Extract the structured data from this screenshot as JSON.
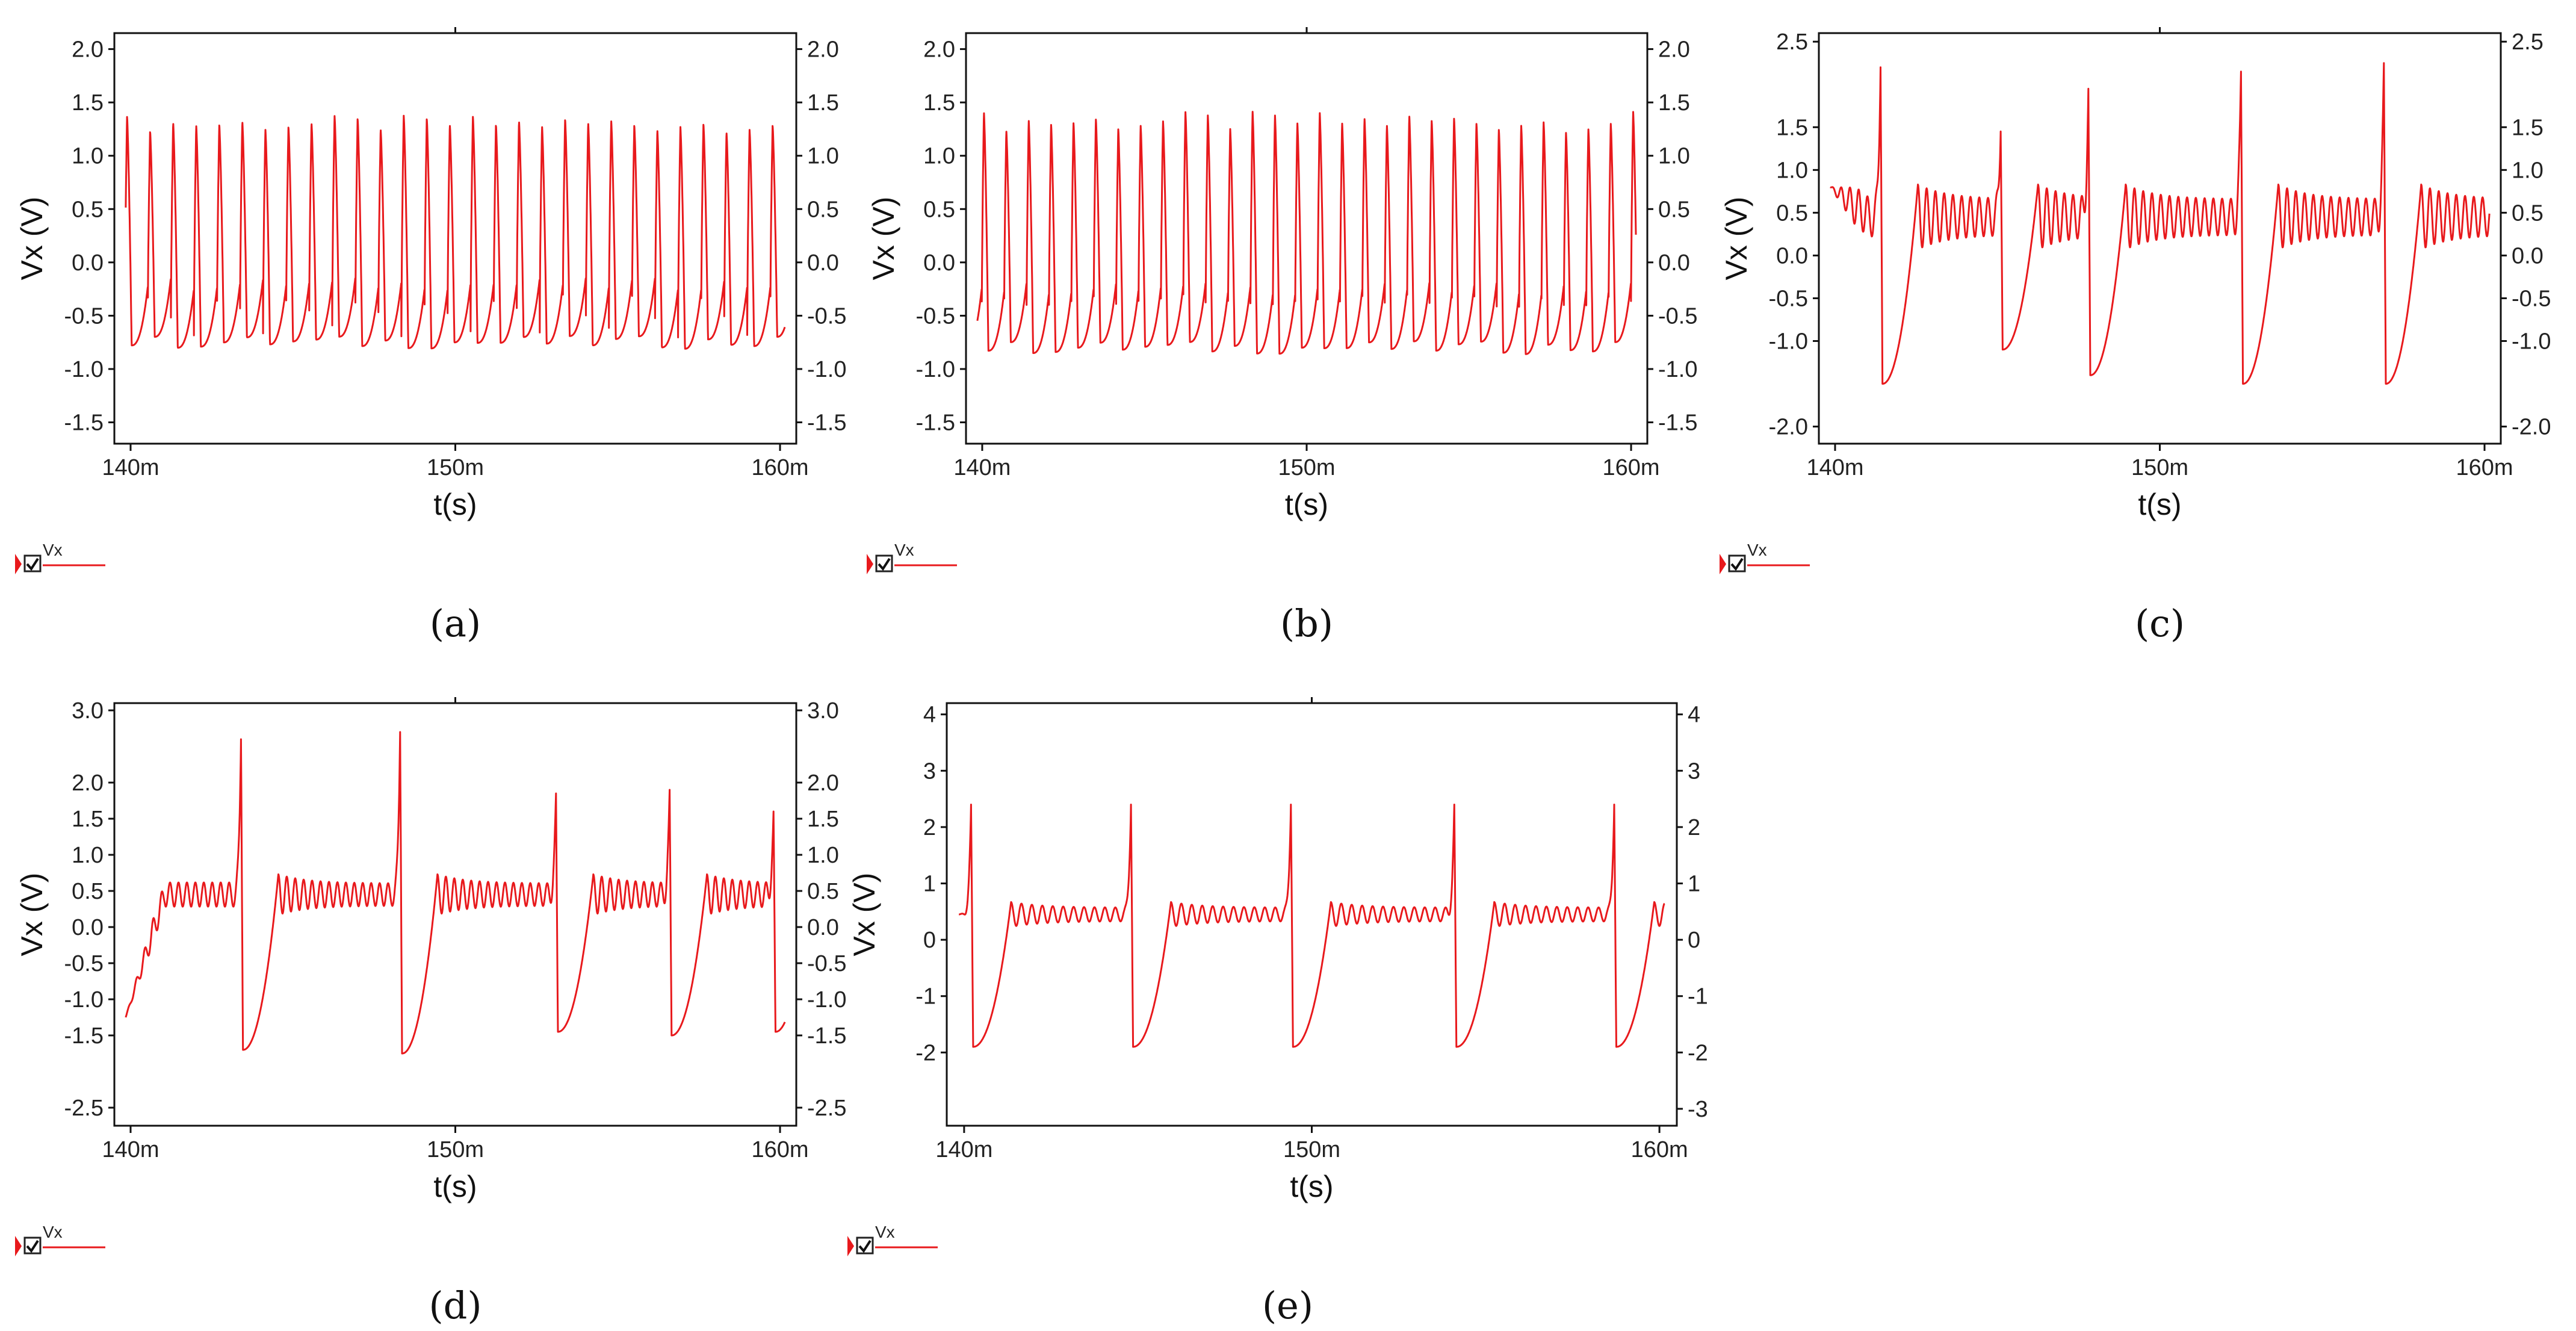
{
  "figure": {
    "accent_color": "#e8191c",
    "legend_label": "Vx",
    "legend_icons": [
      "marker-icon",
      "checkbox-checked-icon"
    ]
  },
  "chart_data": [
    {
      "id": "a",
      "caption": "(a)",
      "type": "line",
      "title": "",
      "xlabel": "t(s)",
      "ylabel": "Vx (V)",
      "xlim": [
        139.5,
        160.5
      ],
      "ylim": [
        -1.7,
        2.15
      ],
      "xticks": [
        {
          "v": 140,
          "t": "140m"
        },
        {
          "v": 150,
          "t": "150m"
        },
        {
          "v": 160,
          "t": "160m"
        }
      ],
      "yticks_left": [
        {
          "v": 2.0,
          "t": "2.0"
        },
        {
          "v": 1.5,
          "t": "1.5"
        },
        {
          "v": 1.0,
          "t": "1.0"
        },
        {
          "v": 0.5,
          "t": "0.5"
        },
        {
          "v": 0.0,
          "t": "0.0"
        },
        {
          "v": -0.5,
          "t": "-0.5"
        },
        {
          "v": -1.0,
          "t": "-1.0"
        },
        {
          "v": -1.5,
          "t": "-1.5"
        }
      ],
      "yticks_right": [
        {
          "v": 2.0,
          "t": "2.0"
        },
        {
          "v": 1.5,
          "t": "1.5"
        },
        {
          "v": 1.0,
          "t": "1.0"
        },
        {
          "v": 0.5,
          "t": "0.5"
        },
        {
          "v": 0.0,
          "t": "0.0"
        },
        {
          "v": -0.5,
          "t": "-0.5"
        },
        {
          "v": -1.0,
          "t": "-1.0"
        },
        {
          "v": -1.5,
          "t": "-1.5"
        }
      ],
      "series": [
        {
          "name": "Vx",
          "color": "#e8191c",
          "waveform": {
            "kind": "spiking",
            "period": 0.71,
            "phase": 0.55,
            "peak": 1.3,
            "trough": -0.75,
            "peak_jitter": 0.08
          }
        }
      ]
    },
    {
      "id": "b",
      "caption": "(b)",
      "type": "line",
      "title": "",
      "xlabel": "t(s)",
      "ylabel": "Vx (V)",
      "xlim": [
        139.5,
        160.5
      ],
      "ylim": [
        -1.7,
        2.15
      ],
      "xticks": [
        {
          "v": 140,
          "t": "140m"
        },
        {
          "v": 150,
          "t": "150m"
        },
        {
          "v": 160,
          "t": "160m"
        }
      ],
      "yticks_left": [
        {
          "v": 2.0,
          "t": "2.0"
        },
        {
          "v": 1.5,
          "t": "1.5"
        },
        {
          "v": 1.0,
          "t": "1.0"
        },
        {
          "v": 0.5,
          "t": "0.5"
        },
        {
          "v": 0.0,
          "t": "0.0"
        },
        {
          "v": -0.5,
          "t": "-0.5"
        },
        {
          "v": -1.0,
          "t": "-1.0"
        },
        {
          "v": -1.5,
          "t": "-1.5"
        }
      ],
      "yticks_right": [
        {
          "v": 2.0,
          "t": "2.0"
        },
        {
          "v": 1.5,
          "t": "1.5"
        },
        {
          "v": 1.0,
          "t": "1.0"
        },
        {
          "v": 0.5,
          "t": "0.5"
        },
        {
          "v": 0.0,
          "t": "0.0"
        },
        {
          "v": -0.5,
          "t": "-0.5"
        },
        {
          "v": -1.0,
          "t": "-1.0"
        },
        {
          "v": -1.5,
          "t": "-1.5"
        }
      ],
      "series": [
        {
          "name": "Vx",
          "color": "#e8191c",
          "waveform": {
            "kind": "spiking",
            "period": 0.69,
            "phase": 0.3,
            "peak": 1.32,
            "trough": -0.8,
            "peak_jitter": 0.1
          }
        }
      ]
    },
    {
      "id": "c",
      "caption": "(c)",
      "type": "line",
      "title": "",
      "xlabel": "t(s)",
      "ylabel": "Vx (V)",
      "xlim": [
        139.5,
        160.5
      ],
      "ylim": [
        -2.2,
        2.6
      ],
      "xticks": [
        {
          "v": 140,
          "t": "140m"
        },
        {
          "v": 150,
          "t": "150m"
        },
        {
          "v": 160,
          "t": "160m"
        }
      ],
      "yticks_left": [
        {
          "v": 2.5,
          "t": "2.5"
        },
        {
          "v": 1.5,
          "t": "1.5"
        },
        {
          "v": 1.0,
          "t": "1.0"
        },
        {
          "v": 0.5,
          "t": "0.5"
        },
        {
          "v": 0.0,
          "t": "0.0"
        },
        {
          "v": -0.5,
          "t": "-0.5"
        },
        {
          "v": -1.0,
          "t": "-1.0"
        },
        {
          "v": -2.0,
          "t": "-2.0"
        }
      ],
      "yticks_right": [
        {
          "v": 2.5,
          "t": "2.5"
        },
        {
          "v": 1.5,
          "t": "1.5"
        },
        {
          "v": 1.0,
          "t": "1.0"
        },
        {
          "v": 0.5,
          "t": "0.5"
        },
        {
          "v": 0.0,
          "t": "0.0"
        },
        {
          "v": -0.5,
          "t": "-0.5"
        },
        {
          "v": -1.0,
          "t": "-1.0"
        },
        {
          "v": -2.0,
          "t": "-2.0"
        }
      ],
      "series": [
        {
          "name": "Vx",
          "color": "#e8191c",
          "waveform": {
            "kind": "bursting",
            "start_value": 0.8,
            "osc_center": 0.45,
            "osc_amp": 0.38,
            "osc_period": 0.27,
            "events": [
              {
                "t": 141.4,
                "peak": 2.2,
                "trough": -1.5,
                "pre": [
                  {
                    "t": 140.8,
                    "v": 0.9
                  }
                ]
              },
              {
                "t": 145.1,
                "peak": 1.45,
                "trough": -1.1,
                "pre": []
              },
              {
                "t": 147.8,
                "peak": 1.95,
                "trough": -1.4,
                "pre": [
                  {
                    "t": 147.1,
                    "v": 0.85
                  }
                ]
              },
              {
                "t": 152.5,
                "peak": 2.15,
                "trough": -1.5,
                "pre": [
                  {
                    "t": 151.4,
                    "v": 0.9
                  }
                ]
              },
              {
                "t": 156.9,
                "peak": 2.25,
                "trough": -1.5,
                "pre": []
              }
            ]
          }
        }
      ]
    },
    {
      "id": "d",
      "caption": "(d)",
      "type": "line",
      "title": "",
      "xlabel": "t(s)",
      "ylabel": "Vx (V)",
      "xlim": [
        139.5,
        160.5
      ],
      "ylim": [
        -2.75,
        3.1
      ],
      "xticks": [
        {
          "v": 140,
          "t": "140m"
        },
        {
          "v": 150,
          "t": "150m"
        },
        {
          "v": 160,
          "t": "160m"
        }
      ],
      "yticks_left": [
        {
          "v": 3.0,
          "t": "3.0"
        },
        {
          "v": 2.0,
          "t": "2.0"
        },
        {
          "v": 1.5,
          "t": "1.5"
        },
        {
          "v": 1.0,
          "t": "1.0"
        },
        {
          "v": 0.5,
          "t": "0.5"
        },
        {
          "v": 0.0,
          "t": "0.0"
        },
        {
          "v": -0.5,
          "t": "-0.5"
        },
        {
          "v": -1.0,
          "t": "-1.0"
        },
        {
          "v": -1.5,
          "t": "-1.5"
        },
        {
          "v": -2.5,
          "t": "-2.5"
        }
      ],
      "yticks_right": [
        {
          "v": 3.0,
          "t": "3.0"
        },
        {
          "v": 2.0,
          "t": "2.0"
        },
        {
          "v": 1.5,
          "t": "1.5"
        },
        {
          "v": 1.0,
          "t": "1.0"
        },
        {
          "v": 0.5,
          "t": "0.5"
        },
        {
          "v": 0.0,
          "t": "0.0"
        },
        {
          "v": -0.5,
          "t": "-0.5"
        },
        {
          "v": -1.0,
          "t": "-1.0"
        },
        {
          "v": -1.5,
          "t": "-1.5"
        },
        {
          "v": -2.5,
          "t": "-2.5"
        }
      ],
      "series": [
        {
          "name": "Vx",
          "color": "#e8191c",
          "waveform": {
            "kind": "bursting",
            "start_value": -1.25,
            "osc_center": 0.45,
            "osc_amp": 0.28,
            "osc_period": 0.26,
            "events": [
              {
                "t": 143.4,
                "peak": 2.6,
                "trough": -1.7,
                "pre": []
              },
              {
                "t": 148.3,
                "peak": 2.7,
                "trough": -1.75,
                "pre": []
              },
              {
                "t": 153.1,
                "peak": 1.85,
                "trough": -1.45,
                "pre": []
              },
              {
                "t": 156.6,
                "peak": 1.9,
                "trough": -1.5,
                "pre": []
              },
              {
                "t": 159.8,
                "peak": 1.6,
                "trough": -1.45,
                "pre": []
              }
            ]
          }
        }
      ]
    },
    {
      "id": "e",
      "caption": "(e)",
      "type": "line",
      "title": "",
      "xlabel": "t(s)",
      "ylabel": "Vx (V)",
      "xlim": [
        139.5,
        160.5
      ],
      "ylim": [
        -3.3,
        4.2
      ],
      "xticks": [
        {
          "v": 140,
          "t": "140m"
        },
        {
          "v": 150,
          "t": "150m"
        },
        {
          "v": 160,
          "t": "160m"
        }
      ],
      "yticks_left": [
        {
          "v": 4,
          "t": "4"
        },
        {
          "v": 3,
          "t": "3"
        },
        {
          "v": 2,
          "t": "2"
        },
        {
          "v": 1,
          "t": "1"
        },
        {
          "v": 0,
          "t": "0"
        },
        {
          "v": -1,
          "t": "-1"
        },
        {
          "v": -2,
          "t": "-2"
        }
      ],
      "yticks_right": [
        {
          "v": 4,
          "t": "4"
        },
        {
          "v": 3,
          "t": "3"
        },
        {
          "v": 2,
          "t": "2"
        },
        {
          "v": 1,
          "t": "1"
        },
        {
          "v": 0,
          "t": "0"
        },
        {
          "v": -1,
          "t": "-1"
        },
        {
          "v": -2,
          "t": "-2"
        },
        {
          "v": -3,
          "t": "-3"
        }
      ],
      "series": [
        {
          "name": "Vx",
          "color": "#e8191c",
          "waveform": {
            "kind": "bursting",
            "start_value": 0.45,
            "osc_center": 0.45,
            "osc_amp": 0.22,
            "osc_period": 0.3,
            "events": [
              {
                "t": 140.2,
                "peak": 2.4,
                "trough": -1.9,
                "pre": []
              },
              {
                "t": 144.8,
                "peak": 2.4,
                "trough": -1.9,
                "pre": []
              },
              {
                "t": 149.4,
                "peak": 2.4,
                "trough": -1.9,
                "pre": []
              },
              {
                "t": 154.1,
                "peak": 2.4,
                "trough": -1.9,
                "pre": []
              },
              {
                "t": 158.7,
                "peak": 2.4,
                "trough": -1.9,
                "pre": []
              }
            ]
          }
        }
      ]
    }
  ]
}
